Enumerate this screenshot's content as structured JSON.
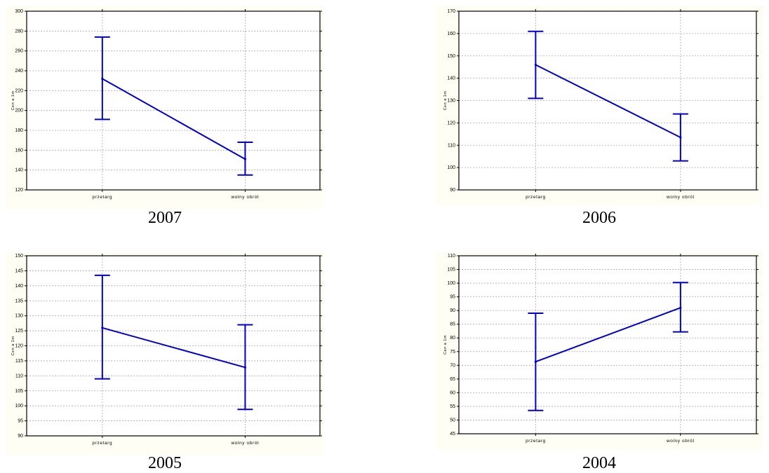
{
  "chart_data": [
    {
      "id": "2007",
      "type": "line",
      "caption": "2007",
      "ylabel": "Cen a 1m",
      "categories": [
        "przetarg",
        "wolny obrót"
      ],
      "series": [
        {
          "values": [
            232,
            151
          ],
          "lower": [
            191,
            135
          ],
          "upper": [
            274,
            168
          ]
        }
      ],
      "ylim": [
        120,
        300
      ],
      "yticks": [
        120,
        140,
        160,
        180,
        200,
        220,
        240,
        260,
        280,
        300
      ],
      "grid": true,
      "colors": {
        "line": "#0000cc",
        "background": "#fffef4",
        "plot_bg": "#ffffff"
      }
    },
    {
      "id": "2006",
      "type": "line",
      "caption": "2006",
      "ylabel": "Cen a 1m",
      "categories": [
        "przetarg",
        "wolny obrót"
      ],
      "series": [
        {
          "values": [
            146,
            113.5
          ],
          "lower": [
            131,
            103
          ],
          "upper": [
            161,
            124
          ]
        }
      ],
      "ylim": [
        90,
        170
      ],
      "yticks": [
        90,
        100,
        110,
        120,
        130,
        140,
        150,
        160,
        170
      ],
      "grid": true,
      "colors": {
        "line": "#0000cc",
        "background": "#fffef4",
        "plot_bg": "#ffffff"
      }
    },
    {
      "id": "2005",
      "type": "line",
      "caption": "2005",
      "ylabel": "Cen a 1m",
      "categories": [
        "przetarg",
        "wolny obrót"
      ],
      "series": [
        {
          "values": [
            126,
            112.8
          ],
          "lower": [
            109,
            98.8
          ],
          "upper": [
            143.5,
            127
          ]
        }
      ],
      "ylim": [
        90,
        150
      ],
      "yticks": [
        90,
        95,
        100,
        105,
        110,
        115,
        120,
        125,
        130,
        135,
        140,
        145,
        150
      ],
      "grid": true,
      "colors": {
        "line": "#0000cc",
        "background": "#fffef4",
        "plot_bg": "#ffffff"
      }
    },
    {
      "id": "2004",
      "type": "line",
      "caption": "2004",
      "ylabel": "Cen a 1m",
      "categories": [
        "przetarg",
        "wolny obrót"
      ],
      "series": [
        {
          "values": [
            71.3,
            91
          ],
          "lower": [
            53.5,
            82.2
          ],
          "upper": [
            89,
            100.2
          ]
        }
      ],
      "ylim": [
        45,
        110
      ],
      "yticks": [
        45,
        50,
        55,
        60,
        65,
        70,
        75,
        80,
        85,
        90,
        95,
        100,
        105,
        110
      ],
      "grid": true,
      "colors": {
        "line": "#0000cc",
        "background": "#fffef4",
        "plot_bg": "#ffffff"
      }
    }
  ]
}
